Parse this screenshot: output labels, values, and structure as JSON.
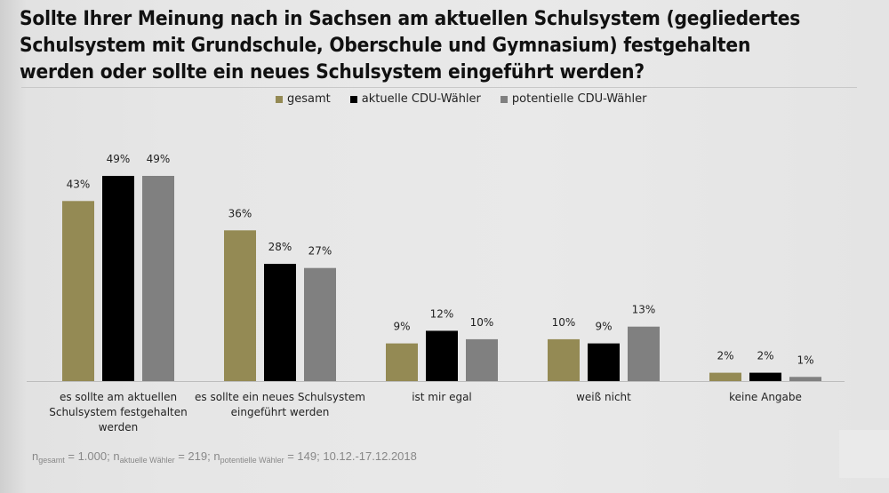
{
  "title": {
    "line1": "Sollte Ihrer Meinung nach in Sachsen am aktuellen Schulsystem (gegliedertes",
    "line2": "Schulsystem mit Grundschule, Oberschule und Gymnasium) festgehalten",
    "line3": "werden oder sollte ein neues Schulsystem eingeführt werden?"
  },
  "footnote": {
    "n1_label": "n",
    "n1_sub": "gesamt",
    "n1_value": " = 1.000; ",
    "n2_label": "n",
    "n2_sub": "aktuelle Wähler",
    "n2_value": " = 219; ",
    "n3_label": "n",
    "n3_sub": "potentielle Wähler",
    "n3_value": " = 149; 10.12.-17.12.2018"
  },
  "chart_data": {
    "type": "bar",
    "title": "Sollte Ihrer Meinung nach in Sachsen am aktuellen Schulsystem (gegliedertes Schulsystem mit Grundschule, Oberschule und Gymnasium) festgehalten werden oder sollte ein neues Schulsystem eingeführt werden?",
    "xlabel": "",
    "ylabel": "",
    "ylim": [
      0,
      50
    ],
    "grid": false,
    "legend_position": "top-center",
    "categories": [
      [
        "es sollte am aktuellen",
        "Schulsystem festgehalten",
        "werden"
      ],
      [
        "es sollte ein neues Schulsystem",
        "eingeführt werden"
      ],
      [
        "ist mir egal"
      ],
      [
        "weiß nicht"
      ],
      [
        "keine Angabe"
      ]
    ],
    "series": [
      {
        "name": "gesamt",
        "color": "#948a54",
        "values": [
          43,
          36,
          9,
          10,
          2
        ]
      },
      {
        "name": "aktuelle CDU-Wähler",
        "color": "#000000",
        "values": [
          49,
          28,
          12,
          9,
          2
        ]
      },
      {
        "name": "potentielle CDU-Wähler",
        "color": "#808080",
        "values": [
          49,
          27,
          10,
          13,
          1
        ]
      }
    ],
    "value_suffix": "%"
  }
}
